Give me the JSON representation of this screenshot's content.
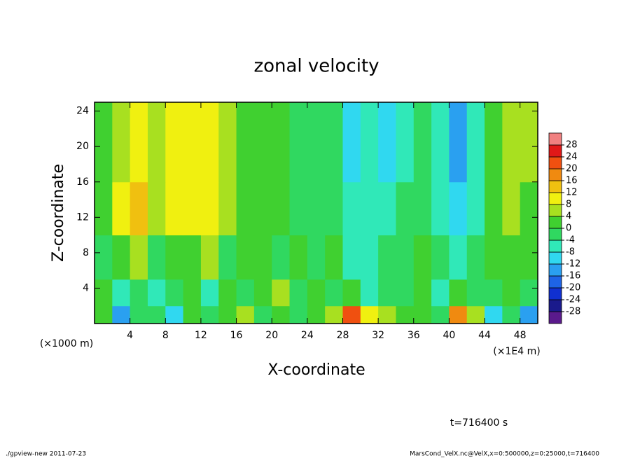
{
  "chart_data": {
    "type": "heatmap",
    "title": "zonal velocity",
    "xlabel": "X-coordinate",
    "ylabel": "Z-coordinate",
    "xunit": "(×1E4 m)",
    "yunit": "(×1000 m)",
    "annotation": "t=716400 s",
    "footer_left": "./gpview-new  2011-07-23",
    "footer_right": "MarsCond_VelX.nc@VelX,x=0:500000,z=0:25000,t=716400",
    "xlim": [
      0,
      50
    ],
    "ylim": [
      0,
      25
    ],
    "xticks": [
      4,
      8,
      12,
      16,
      20,
      24,
      28,
      32,
      36,
      40,
      44,
      48
    ],
    "yticks": [
      4,
      8,
      12,
      16,
      20,
      24
    ],
    "x_edges": [
      0,
      2,
      4,
      6,
      8,
      10,
      12,
      14,
      16,
      18,
      20,
      22,
      24,
      26,
      28,
      30,
      32,
      34,
      36,
      38,
      40,
      42,
      44,
      46,
      48,
      50
    ],
    "y_edges": [
      0,
      2,
      5,
      10,
      16,
      25
    ],
    "z": [
      [
        0,
        -16,
        -4,
        -2,
        -12,
        2,
        -4,
        0,
        4,
        -2,
        0,
        -4,
        2,
        4,
        22,
        10,
        4,
        0,
        2,
        -2,
        18,
        4,
        -12,
        -4,
        -14
      ],
      [
        2,
        -6,
        -2,
        -8,
        -4,
        0,
        -6,
        2,
        -2,
        0,
        4,
        -2,
        0,
        -4,
        2,
        -6,
        -2,
        -4,
        0,
        -6,
        2,
        -4,
        -2,
        0,
        -4
      ],
      [
        -2,
        0,
        4,
        -2,
        2,
        0,
        4,
        -4,
        0,
        2,
        -2,
        0,
        -2,
        2,
        -8,
        -6,
        -4,
        -2,
        0,
        -4,
        -8,
        -4,
        0,
        2,
        0
      ],
      [
        2,
        8,
        14,
        6,
        8,
        10,
        8,
        4,
        0,
        2,
        0,
        -2,
        -2,
        -4,
        -8,
        -6,
        -6,
        -4,
        -2,
        -6,
        -12,
        -6,
        2,
        4,
        2
      ],
      [
        2,
        6,
        10,
        6,
        10,
        10,
        10,
        6,
        0,
        0,
        0,
        -2,
        -2,
        -4,
        -12,
        -8,
        -10,
        -8,
        -4,
        -8,
        -16,
        -6,
        2,
        4,
        4
      ]
    ],
    "colorbar": {
      "levels": [
        -28,
        -24,
        -20,
        -16,
        -12,
        -8,
        -4,
        0,
        4,
        8,
        12,
        16,
        20,
        24,
        28
      ],
      "colors": [
        "#5a1a8c",
        "#1a1a8c",
        "#1030d0",
        "#1e64e6",
        "#2aa0f0",
        "#30d8f0",
        "#30e8b8",
        "#30d860",
        "#40d030",
        "#a8e020",
        "#f0f010",
        "#f0c010",
        "#f08a10",
        "#f05010",
        "#e01818",
        "#f08080"
      ]
    }
  }
}
